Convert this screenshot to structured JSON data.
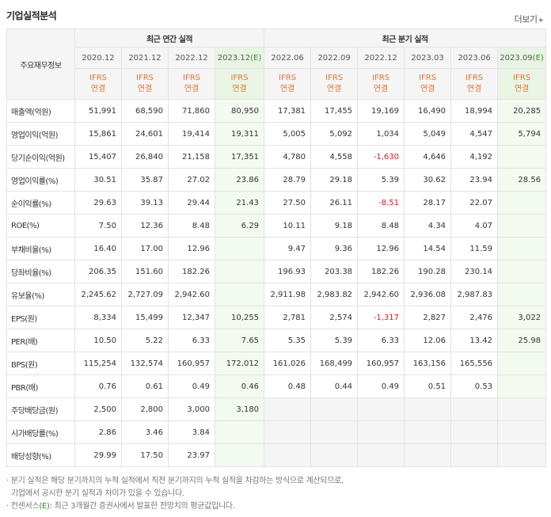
{
  "title": "기업실적분석",
  "more_label": "더보기",
  "more_arrow": "▸",
  "corner_label": "주요재무정보",
  "groups": {
    "annual": "최근 연간 실적",
    "quarterly": "최근 분기 실적"
  },
  "periods": [
    "2020.12",
    "2021.12",
    "2022.12",
    "2023.12",
    "2022.06",
    "2022.09",
    "2022.12",
    "2023.03",
    "2023.06",
    "2023.09"
  ],
  "estimate_suffix": "(E)",
  "ifrs_line1": "IFRS",
  "ifrs_line2": "연결",
  "rows": [
    {
      "label": "매출액(억원)",
      "values": [
        "51,991",
        "68,590",
        "71,860",
        "80,950",
        "17,381",
        "17,455",
        "19,169",
        "16,490",
        "18,994",
        "20,285"
      ]
    },
    {
      "label": "영업이익(억원)",
      "values": [
        "15,861",
        "24,601",
        "19,414",
        "19,311",
        "5,005",
        "5,092",
        "1,034",
        "5,049",
        "4,547",
        "5,794"
      ]
    },
    {
      "label": "당기순이익(억원)",
      "values": [
        "15,407",
        "26,840",
        "21,158",
        "17,351",
        "4,780",
        "4,558",
        "-1,630",
        "4,646",
        "4,192",
        ""
      ]
    },
    {
      "label": "영업이익률(%)",
      "values": [
        "30.51",
        "35.87",
        "27.02",
        "23.86",
        "28.79",
        "29.18",
        "5.39",
        "30.62",
        "23.94",
        "28.56"
      ]
    },
    {
      "label": "순이익률(%)",
      "values": [
        "29.63",
        "39.13",
        "29.44",
        "21.43",
        "27.50",
        "26.11",
        "-8.51",
        "28.17",
        "22.07",
        ""
      ]
    },
    {
      "label": "ROE(%)",
      "values": [
        "7.50",
        "12.36",
        "8.48",
        "6.29",
        "10.11",
        "9.18",
        "8.48",
        "4.34",
        "4.07",
        ""
      ]
    },
    {
      "label": "부채비율(%)",
      "values": [
        "16.40",
        "17.00",
        "12.96",
        "",
        "9.47",
        "9.36",
        "12.96",
        "14.54",
        "11.59",
        ""
      ]
    },
    {
      "label": "당좌비율(%)",
      "values": [
        "206.35",
        "151.60",
        "182.26",
        "",
        "196.93",
        "203.38",
        "182.26",
        "190.28",
        "230.14",
        ""
      ]
    },
    {
      "label": "유보율(%)",
      "values": [
        "2,245.62",
        "2,727.09",
        "2,942.60",
        "",
        "2,911.98",
        "2,983.82",
        "2,942.60",
        "2,936.08",
        "2,987.83",
        ""
      ]
    },
    {
      "label": "EPS(원)",
      "values": [
        "8,334",
        "15,499",
        "12,347",
        "10,255",
        "2,781",
        "2,574",
        "-1,317",
        "2,827",
        "2,476",
        "3,022"
      ]
    },
    {
      "label": "PER(배)",
      "values": [
        "10.50",
        "5.22",
        "6.33",
        "7.65",
        "5.35",
        "5.39",
        "6.33",
        "12.06",
        "13.42",
        "25.98"
      ]
    },
    {
      "label": "BPS(원)",
      "values": [
        "115,254",
        "132,574",
        "160,957",
        "172,012",
        "161,026",
        "168,499",
        "160,957",
        "163,156",
        "165,556",
        ""
      ]
    },
    {
      "label": "PBR(배)",
      "values": [
        "0.76",
        "0.61",
        "0.49",
        "0.46",
        "0.48",
        "0.44",
        "0.49",
        "0.51",
        "0.53",
        ""
      ]
    },
    {
      "label": "주당배당금(원)",
      "values": [
        "2,500",
        "2,800",
        "3,000",
        "3,180",
        "",
        "",
        "",
        "",
        "",
        ""
      ]
    },
    {
      "label": "시가배당률(%)",
      "values": [
        "2.86",
        "3.46",
        "3.84",
        "",
        "",
        "",
        "",
        "",
        "",
        ""
      ]
    },
    {
      "label": "배당성향(%)",
      "values": [
        "29.99",
        "17.50",
        "23.97",
        "",
        "",
        "",
        "",
        "",
        "",
        ""
      ]
    }
  ],
  "notes": {
    "line1": "· 분기 실적은 해당 분기까지의 누적 실적에서 직전 분기까지의 누적 실적을 차감하는 방식으로 계산되므로,",
    "line2": "  기업에서 공시한 분기 실적과 차이가 있을 수 있습니다.",
    "line3_prefix": "· 컨센서스",
    "line3_e": "(E)",
    "line3_suffix": ": 최근 3개월간 증권사에서 발표한 전망치의 평균값입니다."
  },
  "colors": {
    "negative": "#e0191b",
    "ifrs": "#e8722f",
    "estimate": "#2f8f1f",
    "estimate_bg": "#f3faf0"
  }
}
